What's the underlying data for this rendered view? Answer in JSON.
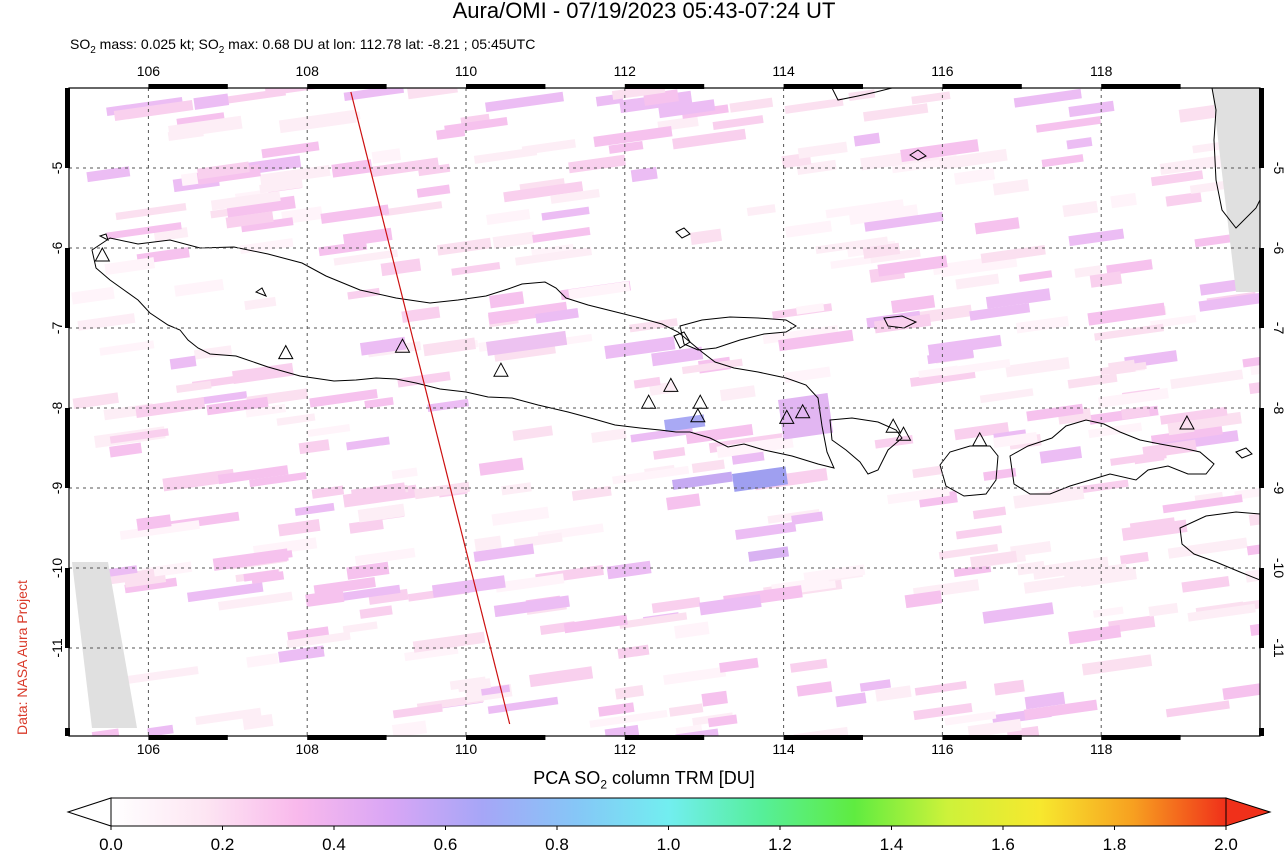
{
  "title": "Aura/OMI - 07/19/2023 05:43-07:24 UT",
  "subtitle": {
    "prefix": "SO",
    "sub": "2",
    "mid": " mass: 0.025 kt; SO",
    "sub2": "2",
    "rest": " max: 0.68 DU at lon: 112.78 lat: -8.21 ; 05:45UTC"
  },
  "side_label": "Data: NASA Aura Project",
  "colorbar": {
    "title_prefix": "PCA SO",
    "title_sub": "2",
    "title_suffix": " column TRM [DU]",
    "ticks": [
      "0.0",
      "0.2",
      "0.4",
      "0.6",
      "0.8",
      "1.0",
      "1.2",
      "1.4",
      "1.6",
      "1.8",
      "2.0"
    ],
    "colors": [
      "#ffffff",
      "#fde6f3",
      "#f9b9ec",
      "#d9a6f5",
      "#a6a6f7",
      "#86c6f7",
      "#72eef0",
      "#56ef9a",
      "#5fec40",
      "#cdf23a",
      "#f7e82e",
      "#f7a020",
      "#f0301a"
    ]
  },
  "map": {
    "lon_range": [
      105,
      120
    ],
    "lat_range": [
      -12.1,
      -4.0
    ],
    "lon_ticks": [
      "106",
      "108",
      "110",
      "112",
      "114",
      "116",
      "118"
    ],
    "lat_ticks": [
      "-5",
      "-6",
      "-7",
      "-8",
      "-9",
      "-10",
      "-11"
    ],
    "volcanoes": [
      [
        105.42,
        -6.1
      ],
      [
        107.73,
        -7.32
      ],
      [
        109.2,
        -7.24
      ],
      [
        110.44,
        -7.54
      ],
      [
        112.3,
        -7.94
      ],
      [
        112.58,
        -7.73
      ],
      [
        112.95,
        -7.94
      ],
      [
        112.92,
        -8.11
      ],
      [
        114.04,
        -8.13
      ],
      [
        114.24,
        -8.06
      ],
      [
        115.38,
        -8.24
      ],
      [
        115.51,
        -8.34
      ],
      [
        116.47,
        -8.41
      ],
      [
        119.08,
        -8.2
      ]
    ],
    "orbit_track": [
      [
        108.55,
        -4.05
      ],
      [
        110.55,
        -11.95
      ]
    ],
    "so2_max_point": [
      112.78,
      -8.21
    ]
  }
}
